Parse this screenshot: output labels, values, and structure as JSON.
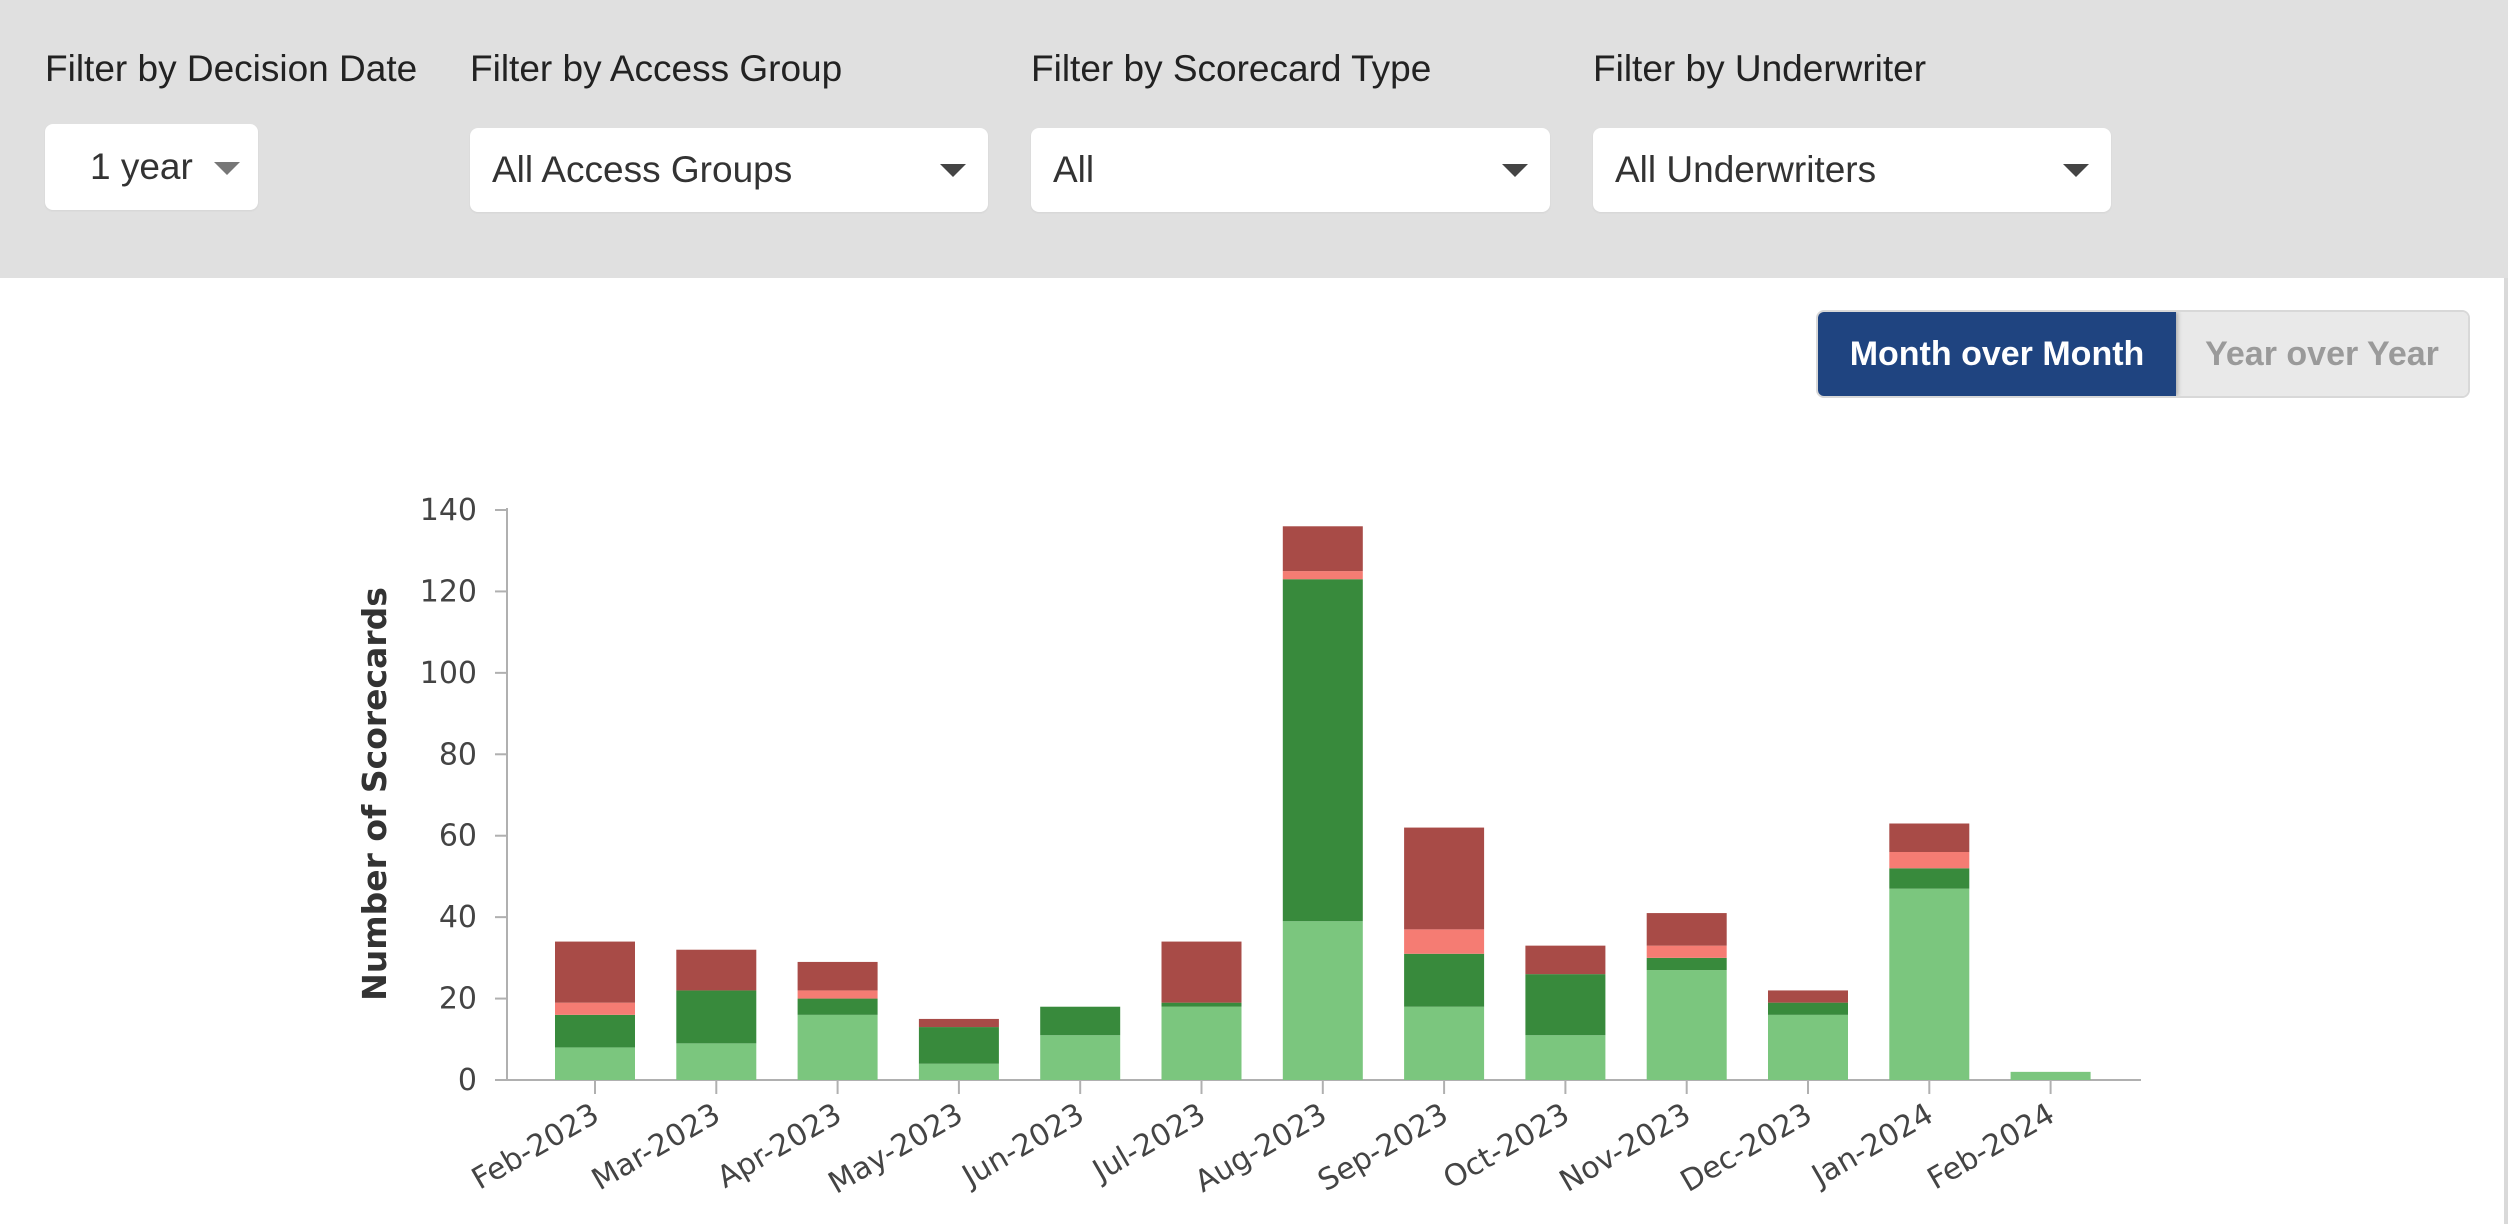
{
  "filters": {
    "decision_date": {
      "label": "Filter by Decision Date",
      "value": "1 year"
    },
    "access_group": {
      "label": "Filter by Access Group",
      "value": "All Access Groups"
    },
    "scorecard_type": {
      "label": "Filter by Scorecard Type",
      "value": "All"
    },
    "underwriter": {
      "label": "Filter by Underwriter",
      "value": "All Underwriters"
    }
  },
  "view_toggle": {
    "options": [
      "Month over Month",
      "Year over Year"
    ],
    "selected": "Month over Month"
  },
  "colors": {
    "toggle_active": "#1f4480",
    "series": [
      "#7bc67e",
      "#388a3c",
      "#f57c73",
      "#a84b47"
    ]
  },
  "chart_data": {
    "type": "bar",
    "stacked": true,
    "ylabel": "Number of Scorecards",
    "xlabel": "",
    "ylim": [
      0,
      140
    ],
    "yticks": [
      0,
      20,
      40,
      60,
      80,
      100,
      120,
      140
    ],
    "categories": [
      "Feb-2023",
      "Mar-2023",
      "Apr-2023",
      "May-2023",
      "Jun-2023",
      "Jul-2023",
      "Aug-2023",
      "Sep-2023",
      "Oct-2023",
      "Nov-2023",
      "Dec-2023",
      "Jan-2024",
      "Feb-2024"
    ],
    "series": [
      {
        "color": "#7bc67e",
        "values": [
          8,
          9,
          16,
          4,
          11,
          18,
          39,
          18,
          11,
          27,
          16,
          47,
          2
        ]
      },
      {
        "color": "#388a3c",
        "values": [
          8,
          13,
          4,
          9,
          7,
          1,
          84,
          13,
          15,
          3,
          3,
          5,
          0
        ]
      },
      {
        "color": "#f57c73",
        "values": [
          3,
          0,
          2,
          0,
          0,
          0,
          2,
          6,
          0,
          3,
          0,
          4,
          0
        ]
      },
      {
        "color": "#a84b47",
        "values": [
          15,
          10,
          7,
          2,
          0,
          15,
          11,
          25,
          7,
          8,
          3,
          7,
          0
        ]
      }
    ]
  }
}
